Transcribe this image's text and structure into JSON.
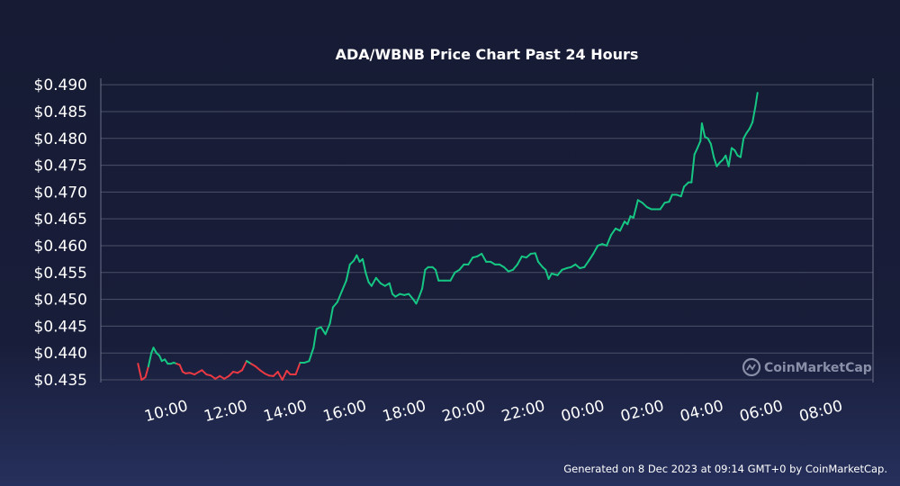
{
  "chart_data": {
    "type": "line",
    "title": "ADA/WBNB Price Chart Past 24 Hours",
    "y_tick_labels": [
      "$0.490",
      "$0.485",
      "$0.480",
      "$0.475",
      "$0.470",
      "$0.465",
      "$0.460",
      "$0.455",
      "$0.450",
      "$0.445",
      "$0.440",
      "$0.435"
    ],
    "y_ticks": [
      0.49,
      0.485,
      0.48,
      0.475,
      0.47,
      0.465,
      0.46,
      0.455,
      0.45,
      0.445,
      0.44,
      0.435
    ],
    "ylim": [
      0.4345,
      0.4912
    ],
    "x_tick_labels": [
      "10:00",
      "12:00",
      "14:00",
      "16:00",
      "18:00",
      "20:00",
      "22:00",
      "00:00",
      "02:00",
      "04:00",
      "06:00",
      "08:00"
    ],
    "x_ticks": [
      10,
      12,
      14,
      16,
      18,
      20,
      22,
      24,
      26,
      28,
      30,
      32
    ],
    "xlim": [
      7.85,
      33.8
    ],
    "grid": true,
    "baseline": 0.438,
    "colors": {
      "up": "#16c784",
      "down": "#ea3943",
      "grid": "#4b5068",
      "axis": "#6b7089"
    },
    "series": [
      {
        "name": "ADA/WBNB",
        "points": [
          [
            9.1,
            0.438
          ],
          [
            9.22,
            0.435
          ],
          [
            9.35,
            0.4355
          ],
          [
            9.45,
            0.4375
          ],
          [
            9.55,
            0.44
          ],
          [
            9.62,
            0.441
          ],
          [
            9.72,
            0.44
          ],
          [
            9.82,
            0.4395
          ],
          [
            9.9,
            0.4385
          ],
          [
            10.0,
            0.4388
          ],
          [
            10.1,
            0.438
          ],
          [
            10.2,
            0.438
          ],
          [
            10.3,
            0.4382
          ],
          [
            10.4,
            0.438
          ],
          [
            10.5,
            0.4378
          ],
          [
            10.6,
            0.4365
          ],
          [
            10.7,
            0.4362
          ],
          [
            10.85,
            0.4363
          ],
          [
            11.0,
            0.436
          ],
          [
            11.15,
            0.4365
          ],
          [
            11.25,
            0.4368
          ],
          [
            11.4,
            0.436
          ],
          [
            11.55,
            0.4358
          ],
          [
            11.7,
            0.4352
          ],
          [
            11.85,
            0.4357
          ],
          [
            12.0,
            0.4352
          ],
          [
            12.15,
            0.4357
          ],
          [
            12.3,
            0.4365
          ],
          [
            12.45,
            0.4363
          ],
          [
            12.6,
            0.4368
          ],
          [
            12.75,
            0.4385
          ],
          [
            12.9,
            0.438
          ],
          [
            13.05,
            0.4375
          ],
          [
            13.2,
            0.4368
          ],
          [
            13.35,
            0.4362
          ],
          [
            13.5,
            0.4358
          ],
          [
            13.65,
            0.4357
          ],
          [
            13.8,
            0.4365
          ],
          [
            13.95,
            0.435
          ],
          [
            14.1,
            0.4367
          ],
          [
            14.22,
            0.436
          ],
          [
            14.4,
            0.436
          ],
          [
            14.55,
            0.4382
          ],
          [
            14.7,
            0.4382
          ],
          [
            14.85,
            0.4385
          ],
          [
            15.0,
            0.441
          ],
          [
            15.1,
            0.4445
          ],
          [
            15.25,
            0.4448
          ],
          [
            15.4,
            0.4435
          ],
          [
            15.55,
            0.4455
          ],
          [
            15.65,
            0.4485
          ],
          [
            15.8,
            0.4495
          ],
          [
            15.95,
            0.4515
          ],
          [
            16.1,
            0.4535
          ],
          [
            16.22,
            0.4565
          ],
          [
            16.35,
            0.4572
          ],
          [
            16.45,
            0.4582
          ],
          [
            16.55,
            0.457
          ],
          [
            16.65,
            0.4575
          ],
          [
            16.75,
            0.455
          ],
          [
            16.85,
            0.4532
          ],
          [
            16.95,
            0.4525
          ],
          [
            17.1,
            0.454
          ],
          [
            17.25,
            0.453
          ],
          [
            17.4,
            0.4525
          ],
          [
            17.55,
            0.453
          ],
          [
            17.65,
            0.451
          ],
          [
            17.75,
            0.4505
          ],
          [
            17.9,
            0.451
          ],
          [
            18.05,
            0.4508
          ],
          [
            18.2,
            0.451
          ],
          [
            18.35,
            0.45
          ],
          [
            18.45,
            0.4492
          ],
          [
            18.55,
            0.4505
          ],
          [
            18.65,
            0.452
          ],
          [
            18.75,
            0.4555
          ],
          [
            18.85,
            0.456
          ],
          [
            19.0,
            0.456
          ],
          [
            19.1,
            0.4555
          ],
          [
            19.2,
            0.4535
          ],
          [
            19.4,
            0.4535
          ],
          [
            19.6,
            0.4535
          ],
          [
            19.75,
            0.455
          ],
          [
            19.9,
            0.4555
          ],
          [
            20.05,
            0.4565
          ],
          [
            20.2,
            0.4565
          ],
          [
            20.35,
            0.4578
          ],
          [
            20.5,
            0.458
          ],
          [
            20.65,
            0.4585
          ],
          [
            20.8,
            0.457
          ],
          [
            20.95,
            0.457
          ],
          [
            21.1,
            0.4565
          ],
          [
            21.25,
            0.4565
          ],
          [
            21.4,
            0.456
          ],
          [
            21.55,
            0.4552
          ],
          [
            21.7,
            0.4555
          ],
          [
            21.85,
            0.4565
          ],
          [
            22.0,
            0.458
          ],
          [
            22.15,
            0.4578
          ],
          [
            22.3,
            0.4585
          ],
          [
            22.45,
            0.4586
          ],
          [
            22.55,
            0.457
          ],
          [
            22.7,
            0.456
          ],
          [
            22.8,
            0.4555
          ],
          [
            22.9,
            0.4538
          ],
          [
            23.0,
            0.4548
          ],
          [
            23.2,
            0.4545
          ],
          [
            23.35,
            0.4555
          ],
          [
            23.5,
            0.4558
          ],
          [
            23.65,
            0.456
          ],
          [
            23.8,
            0.4565
          ],
          [
            23.95,
            0.4558
          ],
          [
            24.1,
            0.456
          ],
          [
            24.25,
            0.4572
          ],
          [
            24.4,
            0.4585
          ],
          [
            24.55,
            0.46
          ],
          [
            24.7,
            0.4603
          ],
          [
            24.85,
            0.46
          ],
          [
            25.0,
            0.462
          ],
          [
            25.15,
            0.4632
          ],
          [
            25.3,
            0.4628
          ],
          [
            25.45,
            0.4645
          ],
          [
            25.55,
            0.464
          ],
          [
            25.65,
            0.4655
          ],
          [
            25.75,
            0.4652
          ],
          [
            25.9,
            0.4685
          ],
          [
            26.05,
            0.468
          ],
          [
            26.2,
            0.4672
          ],
          [
            26.35,
            0.4668
          ],
          [
            26.5,
            0.4668
          ],
          [
            26.65,
            0.4668
          ],
          [
            26.8,
            0.468
          ],
          [
            26.95,
            0.4682
          ],
          [
            27.05,
            0.4695
          ],
          [
            27.2,
            0.4695
          ],
          [
            27.35,
            0.4692
          ],
          [
            27.45,
            0.471
          ],
          [
            27.6,
            0.4718
          ],
          [
            27.7,
            0.4718
          ],
          [
            27.8,
            0.477
          ],
          [
            27.9,
            0.4782
          ],
          [
            28.0,
            0.4795
          ],
          [
            28.05,
            0.4828
          ],
          [
            28.15,
            0.4803
          ],
          [
            28.25,
            0.48
          ],
          [
            28.35,
            0.479
          ],
          [
            28.45,
            0.4765
          ],
          [
            28.55,
            0.4748
          ],
          [
            28.65,
            0.4755
          ],
          [
            28.75,
            0.476
          ],
          [
            28.85,
            0.4768
          ],
          [
            28.95,
            0.4748
          ],
          [
            29.05,
            0.4782
          ],
          [
            29.15,
            0.4778
          ],
          [
            29.25,
            0.4768
          ],
          [
            29.35,
            0.4765
          ],
          [
            29.45,
            0.48
          ],
          [
            29.55,
            0.481
          ],
          [
            29.65,
            0.4818
          ],
          [
            29.75,
            0.483
          ],
          [
            29.85,
            0.486
          ],
          [
            29.92,
            0.4885
          ]
        ]
      }
    ],
    "watermark": "CoinMarketCap"
  },
  "footer": "Generated on 8 Dec 2023 at 09:14 GMT+0 by CoinMarketCap."
}
